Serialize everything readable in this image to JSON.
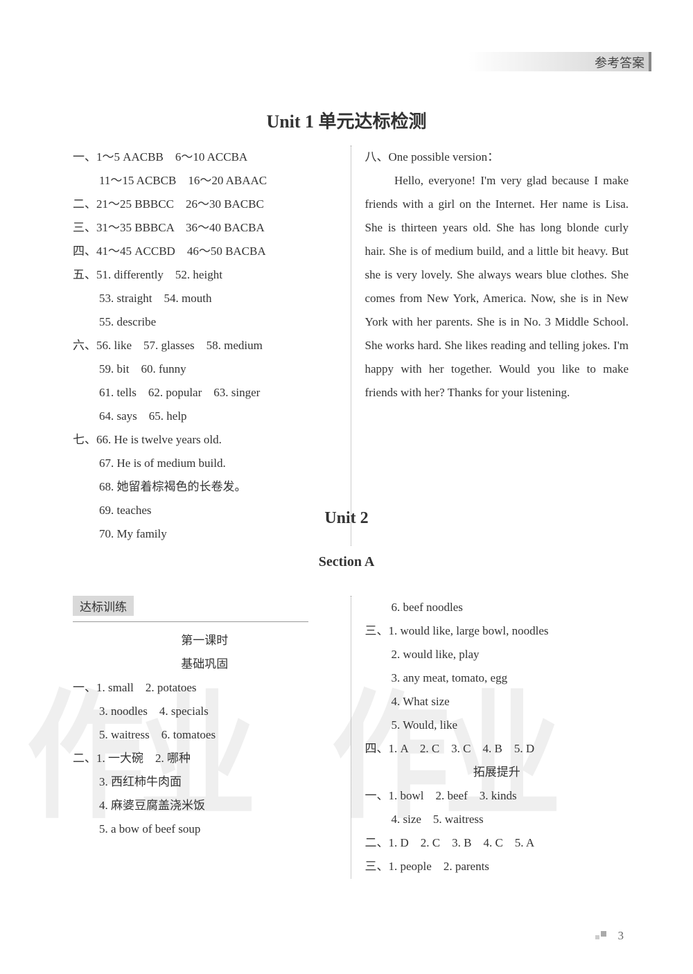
{
  "header": {
    "label": "参考答案"
  },
  "unit1": {
    "title": "Unit 1 单元达标检测",
    "left": [
      {
        "t": "一、1～5 AACBB　6～10 ACCBA",
        "i": 0
      },
      {
        "t": "11～15 ACBCB　16～20 ABAAC",
        "i": 1
      },
      {
        "t": "二、21～25 BBBCC　26～30 BACBC",
        "i": 0
      },
      {
        "t": "三、31～35 BBBCA　36～40 BACBA",
        "i": 0
      },
      {
        "t": "四、41～45 ACCBD　46～50 BACBA",
        "i": 0
      },
      {
        "t": "五、51. differently　52. height",
        "i": 0
      },
      {
        "t": "53. straight　54. mouth",
        "i": 1
      },
      {
        "t": "55. describe",
        "i": 1
      },
      {
        "t": "六、56. like　57. glasses　58. medium",
        "i": 0
      },
      {
        "t": "59. bit　60. funny",
        "i": 1
      },
      {
        "t": "61. tells　62. popular　63. singer",
        "i": 1
      },
      {
        "t": "64. says　65. help",
        "i": 1
      },
      {
        "t": "七、66. He is twelve years old.",
        "i": 0
      },
      {
        "t": "67. He is of medium build.",
        "i": 1
      },
      {
        "t": "68. 她留着棕褐色的长卷发。",
        "i": 1
      },
      {
        "t": "69. teaches",
        "i": 1
      },
      {
        "t": "70. My family",
        "i": 1
      }
    ],
    "right_head": "八、One possible version：",
    "right_para": "Hello, everyone! I'm very glad because I make friends with a girl on the Internet. Her name is Lisa. She is thirteen years old. She has long blonde curly hair. She is of medium build, and a little bit heavy. But she is very lovely. She always wears blue clothes. She comes from New York, America. Now, she is in New York with her parents. She is in No. 3 Middle School. She works hard. She likes reading and telling jokes. I'm happy with her together. Would you like to make friends with her? Thanks for your listening."
  },
  "unit2": {
    "title": "Unit 2",
    "section": "Section A",
    "box": "达标训练",
    "lesson": "第一课时",
    "basic": "基础巩固",
    "ext": "拓展提升",
    "left": [
      {
        "t": "一、1. small　2. potatoes",
        "i": 0
      },
      {
        "t": "3. noodles　4. specials",
        "i": 1
      },
      {
        "t": "5. waitress　6. tomatoes",
        "i": 1
      },
      {
        "t": "二、1. 一大碗　2. 哪种",
        "i": 0
      },
      {
        "t": "3. 西红柿牛肉面",
        "i": 1
      },
      {
        "t": "4. 麻婆豆腐盖浇米饭",
        "i": 1
      },
      {
        "t": "5. a bow of beef soup",
        "i": 1
      }
    ],
    "right": [
      {
        "t": "6. beef noodles",
        "i": 1
      },
      {
        "t": "三、1. would like, large bowl, noodles",
        "i": 0
      },
      {
        "t": "2. would like, play",
        "i": 1
      },
      {
        "t": "3. any meat, tomato, egg",
        "i": 1
      },
      {
        "t": "4. What size",
        "i": 1
      },
      {
        "t": "5. Would, like",
        "i": 1
      },
      {
        "t": "四、1. A　2. C　3. C　4. B　5. D",
        "i": 0
      },
      {
        "t": "一、1. bowl　2. beef　3. kinds",
        "i": 0
      },
      {
        "t": "4. size　5. waitress",
        "i": 1
      },
      {
        "t": "二、1. D　2. C　3. B　4. C　5. A",
        "i": 0
      },
      {
        "t": "三、1. people　2. parents",
        "i": 0
      }
    ]
  },
  "page": "3",
  "watermark": "作业"
}
